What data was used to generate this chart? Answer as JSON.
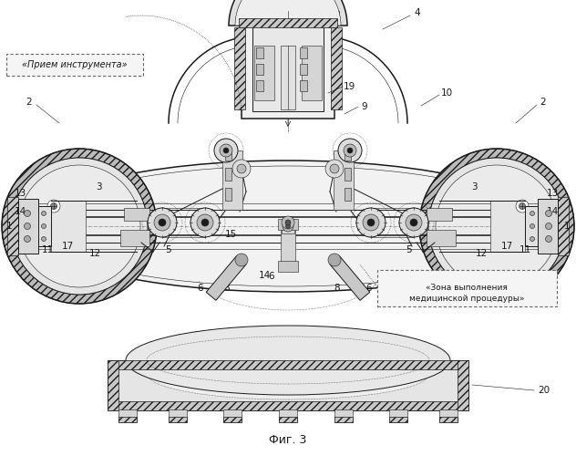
{
  "figure_label": "Фиг. 3",
  "bg_color": "#ffffff",
  "lc": "#1a1a1a",
  "gray_light": "#e8e8e8",
  "gray_med": "#cccccc",
  "gray_dark": "#aaaaaa",
  "gray_hatch": "#999999",
  "label_fontsize": 7.5,
  "fig_label_fontsize": 9,
  "labels": {
    "priem": "«Прием инструмента»",
    "zona_line1": "«Зона выполнения",
    "zona_line2": "медицинской процедуры»"
  }
}
